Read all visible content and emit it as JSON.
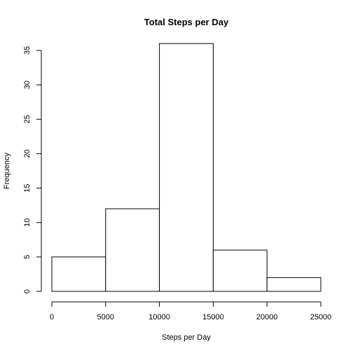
{
  "chart_data": {
    "type": "bar",
    "title": "Total Steps per Day",
    "xlabel": "Steps per Day",
    "ylabel": "Frequency",
    "bins": [
      {
        "from": 0,
        "to": 5000,
        "count": 5
      },
      {
        "from": 5000,
        "to": 10000,
        "count": 12
      },
      {
        "from": 10000,
        "to": 15000,
        "count": 36
      },
      {
        "from": 15000,
        "to": 20000,
        "count": 6
      },
      {
        "from": 20000,
        "to": 25000,
        "count": 2
      }
    ],
    "xticks": [
      "0",
      "5000",
      "10000",
      "15000",
      "20000",
      "25000"
    ],
    "yticks": [
      "0",
      "5",
      "10",
      "15",
      "20",
      "25",
      "30",
      "35"
    ],
    "xlim": [
      0,
      25000
    ],
    "ylim": [
      0,
      36
    ],
    "grid": false,
    "bar_fill": "#ffffff",
    "bar_stroke": "#000000"
  }
}
